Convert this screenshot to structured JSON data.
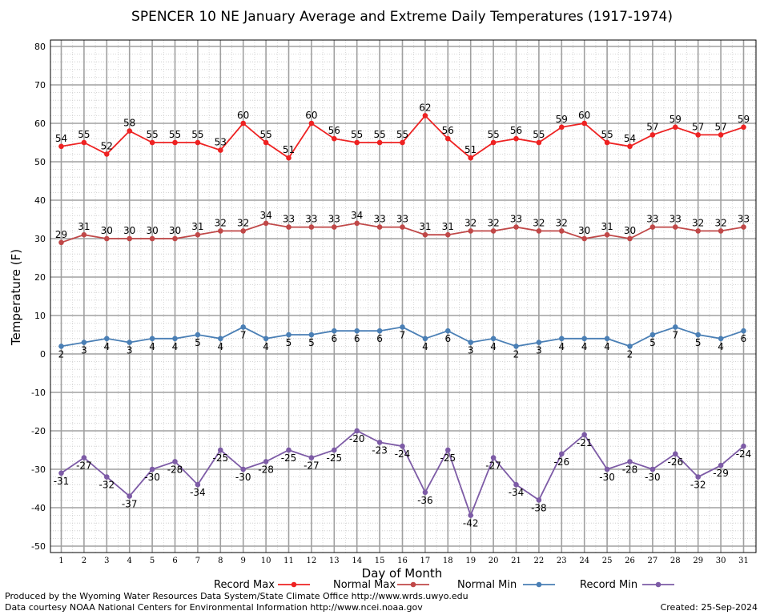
{
  "chart_data": {
    "type": "line",
    "title": "SPENCER 10 NE January Average and Extreme Daily Temperatures (1917-1974)",
    "xlabel": "Day of Month",
    "ylabel": "Temperature (F)",
    "ylim": [
      -50,
      80
    ],
    "y_ticks": [
      -50,
      -40,
      -30,
      -20,
      -10,
      0,
      10,
      20,
      30,
      40,
      50,
      60,
      70,
      80
    ],
    "x": [
      1,
      2,
      3,
      4,
      5,
      6,
      7,
      8,
      9,
      10,
      11,
      12,
      13,
      14,
      15,
      16,
      17,
      18,
      19,
      20,
      21,
      22,
      23,
      24,
      25,
      26,
      27,
      28,
      29,
      30,
      31
    ],
    "grid": true,
    "legend_position": "bottom",
    "series": [
      {
        "name": "Record Max",
        "color": "#ee2222",
        "label_pos": "above",
        "values": [
          54,
          55,
          52,
          58,
          55,
          55,
          55,
          53,
          60,
          55,
          51,
          60,
          56,
          55,
          55,
          55,
          62,
          56,
          51,
          55,
          56,
          55,
          59,
          60,
          55,
          54,
          57,
          59,
          57,
          57,
          59
        ]
      },
      {
        "name": "Normal Max",
        "color": "#c04848",
        "label_pos": "above",
        "values": [
          29,
          31,
          30,
          30,
          30,
          30,
          31,
          32,
          32,
          34,
          33,
          33,
          33,
          34,
          33,
          33,
          31,
          31,
          32,
          32,
          33,
          32,
          32,
          30,
          31,
          30,
          33,
          33,
          32,
          32,
          33
        ]
      },
      {
        "name": "Normal Min",
        "color": "#4a7fb5",
        "label_pos": "below",
        "values": [
          2,
          3,
          4,
          3,
          4,
          4,
          5,
          4,
          7,
          4,
          5,
          5,
          6,
          6,
          6,
          7,
          4,
          6,
          3,
          4,
          2,
          3,
          4,
          4,
          4,
          2,
          5,
          7,
          5,
          4,
          6
        ]
      },
      {
        "name": "Record Min",
        "color": "#7d5ba6",
        "label_pos": "below",
        "values": [
          -31,
          -27,
          -32,
          -37,
          -30,
          -28,
          -34,
          -25,
          -30,
          -28,
          -25,
          -27,
          -25,
          -20,
          -23,
          -24,
          -36,
          -25,
          -42,
          -27,
          -34,
          -38,
          -26,
          -21,
          -30,
          -28,
          -30,
          -26,
          -32,
          -29,
          -24
        ]
      }
    ]
  },
  "footer": {
    "produced_by": "Produced by the Wyoming Water Resources Data System/State Climate Office http://www.wrds.uwyo.edu",
    "courtesy": "Data courtesy NOAA National Centers for Environmental Information http://www.ncei.noaa.gov",
    "created": "Created:  25-Sep-2024"
  }
}
